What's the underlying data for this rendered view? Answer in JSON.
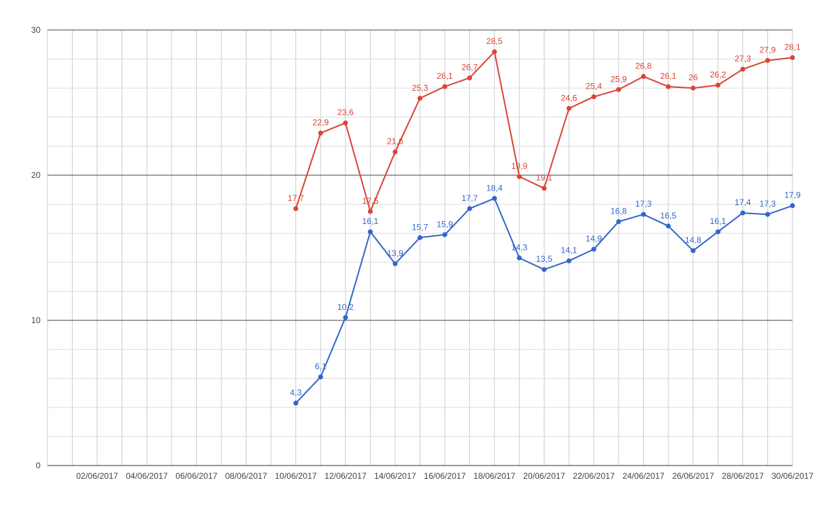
{
  "chart_data": {
    "type": "line",
    "title": "",
    "xlabel": "",
    "ylabel": "",
    "x": [
      "01/06/2017",
      "02/06/2017",
      "03/06/2017",
      "04/06/2017",
      "05/06/2017",
      "06/06/2017",
      "07/06/2017",
      "08/06/2017",
      "09/06/2017",
      "10/06/2017",
      "11/06/2017",
      "12/06/2017",
      "13/06/2017",
      "14/06/2017",
      "15/06/2017",
      "16/06/2017",
      "17/06/2017",
      "18/06/2017",
      "19/06/2017",
      "20/06/2017",
      "21/06/2017",
      "22/06/2017",
      "23/06/2017",
      "24/06/2017",
      "25/06/2017",
      "26/06/2017",
      "27/06/2017",
      "28/06/2017",
      "29/06/2017",
      "30/06/2017"
    ],
    "x_tick_labels": [
      "02/06/2017",
      "04/06/2017",
      "06/06/2017",
      "08/06/2017",
      "10/06/2017",
      "12/06/2017",
      "14/06/2017",
      "16/06/2017",
      "18/06/2017",
      "20/06/2017",
      "22/06/2017",
      "24/06/2017",
      "26/06/2017",
      "28/06/2017",
      "30/06/2017"
    ],
    "y_ticks": [
      "0",
      "10",
      "20",
      "30"
    ],
    "ylim": [
      0,
      30
    ],
    "grid": true,
    "series": [
      {
        "color": "#db4437",
        "x": [
          "10/06/2017",
          "11/06/2017",
          "12/06/2017",
          "13/06/2017",
          "14/06/2017",
          "15/06/2017",
          "16/06/2017",
          "17/06/2017",
          "18/06/2017",
          "19/06/2017",
          "20/06/2017",
          "21/06/2017",
          "22/06/2017",
          "23/06/2017",
          "24/06/2017",
          "25/06/2017",
          "26/06/2017",
          "27/06/2017",
          "28/06/2017",
          "29/06/2017",
          "30/06/2017"
        ],
        "values": [
          17.7,
          22.9,
          23.6,
          17.5,
          21.6,
          25.3,
          26.1,
          26.7,
          28.5,
          19.9,
          19.1,
          24.6,
          25.4,
          25.9,
          26.8,
          26.1,
          26.0,
          26.2,
          27.3,
          27.9,
          28.1
        ],
        "labels": [
          "17,7",
          "22,9",
          "23,6",
          "17,5",
          "21,6",
          "25,3",
          "26,1",
          "26,7",
          "28,5",
          "19,9",
          "19,1",
          "24,6",
          "25,4",
          "25,9",
          "26,8",
          "26,1",
          "26",
          "26,2",
          "27,3",
          "27,9",
          "28,1"
        ]
      },
      {
        "color": "#3366cc",
        "x": [
          "10/06/2017",
          "11/06/2017",
          "12/06/2017",
          "13/06/2017",
          "14/06/2017",
          "15/06/2017",
          "16/06/2017",
          "17/06/2017",
          "18/06/2017",
          "19/06/2017",
          "20/06/2017",
          "21/06/2017",
          "22/06/2017",
          "23/06/2017",
          "24/06/2017",
          "25/06/2017",
          "26/06/2017",
          "27/06/2017",
          "28/06/2017",
          "29/06/2017",
          "30/06/2017"
        ],
        "values": [
          4.3,
          6.1,
          10.2,
          16.1,
          13.9,
          15.7,
          15.9,
          17.7,
          18.4,
          14.3,
          13.5,
          14.1,
          14.9,
          16.8,
          17.3,
          16.5,
          14.8,
          16.1,
          17.4,
          17.3,
          17.9
        ],
        "labels": [
          "4,3",
          "6,1",
          "10,2",
          "16,1",
          "13,9",
          "15,7",
          "15,9",
          "17,7",
          "18,4",
          "14,3",
          "13,5",
          "14,1",
          "14,9",
          "16,8",
          "17,3",
          "16,5",
          "14,8",
          "16,1",
          "17,4",
          "17,3",
          "17,9"
        ]
      }
    ]
  }
}
